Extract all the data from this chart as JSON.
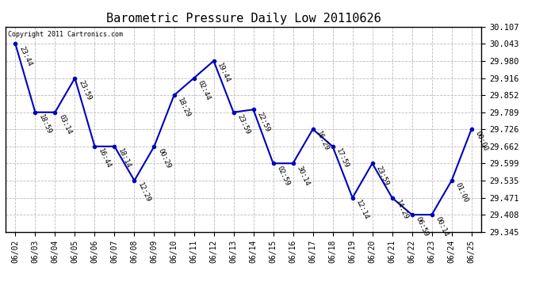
{
  "title": "Barometric Pressure Daily Low 20110626",
  "copyright": "Copyright 2011 Cartronics.com",
  "x_labels": [
    "06/02",
    "06/03",
    "06/04",
    "06/05",
    "06/06",
    "06/07",
    "06/08",
    "06/09",
    "06/10",
    "06/11",
    "06/12",
    "06/13",
    "06/14",
    "06/15",
    "06/16",
    "06/17",
    "06/18",
    "06/19",
    "06/20",
    "06/21",
    "06/22",
    "06/23",
    "06/24",
    "06/25"
  ],
  "y_values": [
    30.043,
    29.789,
    29.789,
    29.916,
    29.662,
    29.662,
    29.535,
    29.662,
    29.852,
    29.916,
    29.98,
    29.789,
    29.799,
    29.599,
    29.599,
    29.726,
    29.662,
    29.471,
    29.599,
    29.471,
    29.408,
    29.408,
    29.535,
    29.726
  ],
  "point_labels": [
    "23:44",
    "18:59",
    "03:14",
    "23:59",
    "16:44",
    "18:14",
    "12:29",
    "00:29",
    "18:29",
    "02:44",
    "19:44",
    "23:59",
    "22:59",
    "02:59",
    "30:14",
    "16:29",
    "17:59",
    "12:14",
    "23:59",
    "14:29",
    "06:59",
    "00:14",
    "01:00",
    "00:00"
  ],
  "ylim_min": 29.345,
  "ylim_max": 30.107,
  "ytick_values": [
    29.345,
    29.408,
    29.471,
    29.535,
    29.599,
    29.662,
    29.726,
    29.789,
    29.852,
    29.916,
    29.98,
    30.043,
    30.107
  ],
  "line_color": "#0000bb",
  "marker_color": "#0000bb",
  "bg_color": "#ffffff",
  "grid_color": "#bbbbbb",
  "title_fontsize": 11,
  "point_label_fontsize": 6.5,
  "xtick_fontsize": 7,
  "ytick_fontsize": 7.5,
  "figwidth": 6.9,
  "figheight": 3.75,
  "dpi": 100
}
